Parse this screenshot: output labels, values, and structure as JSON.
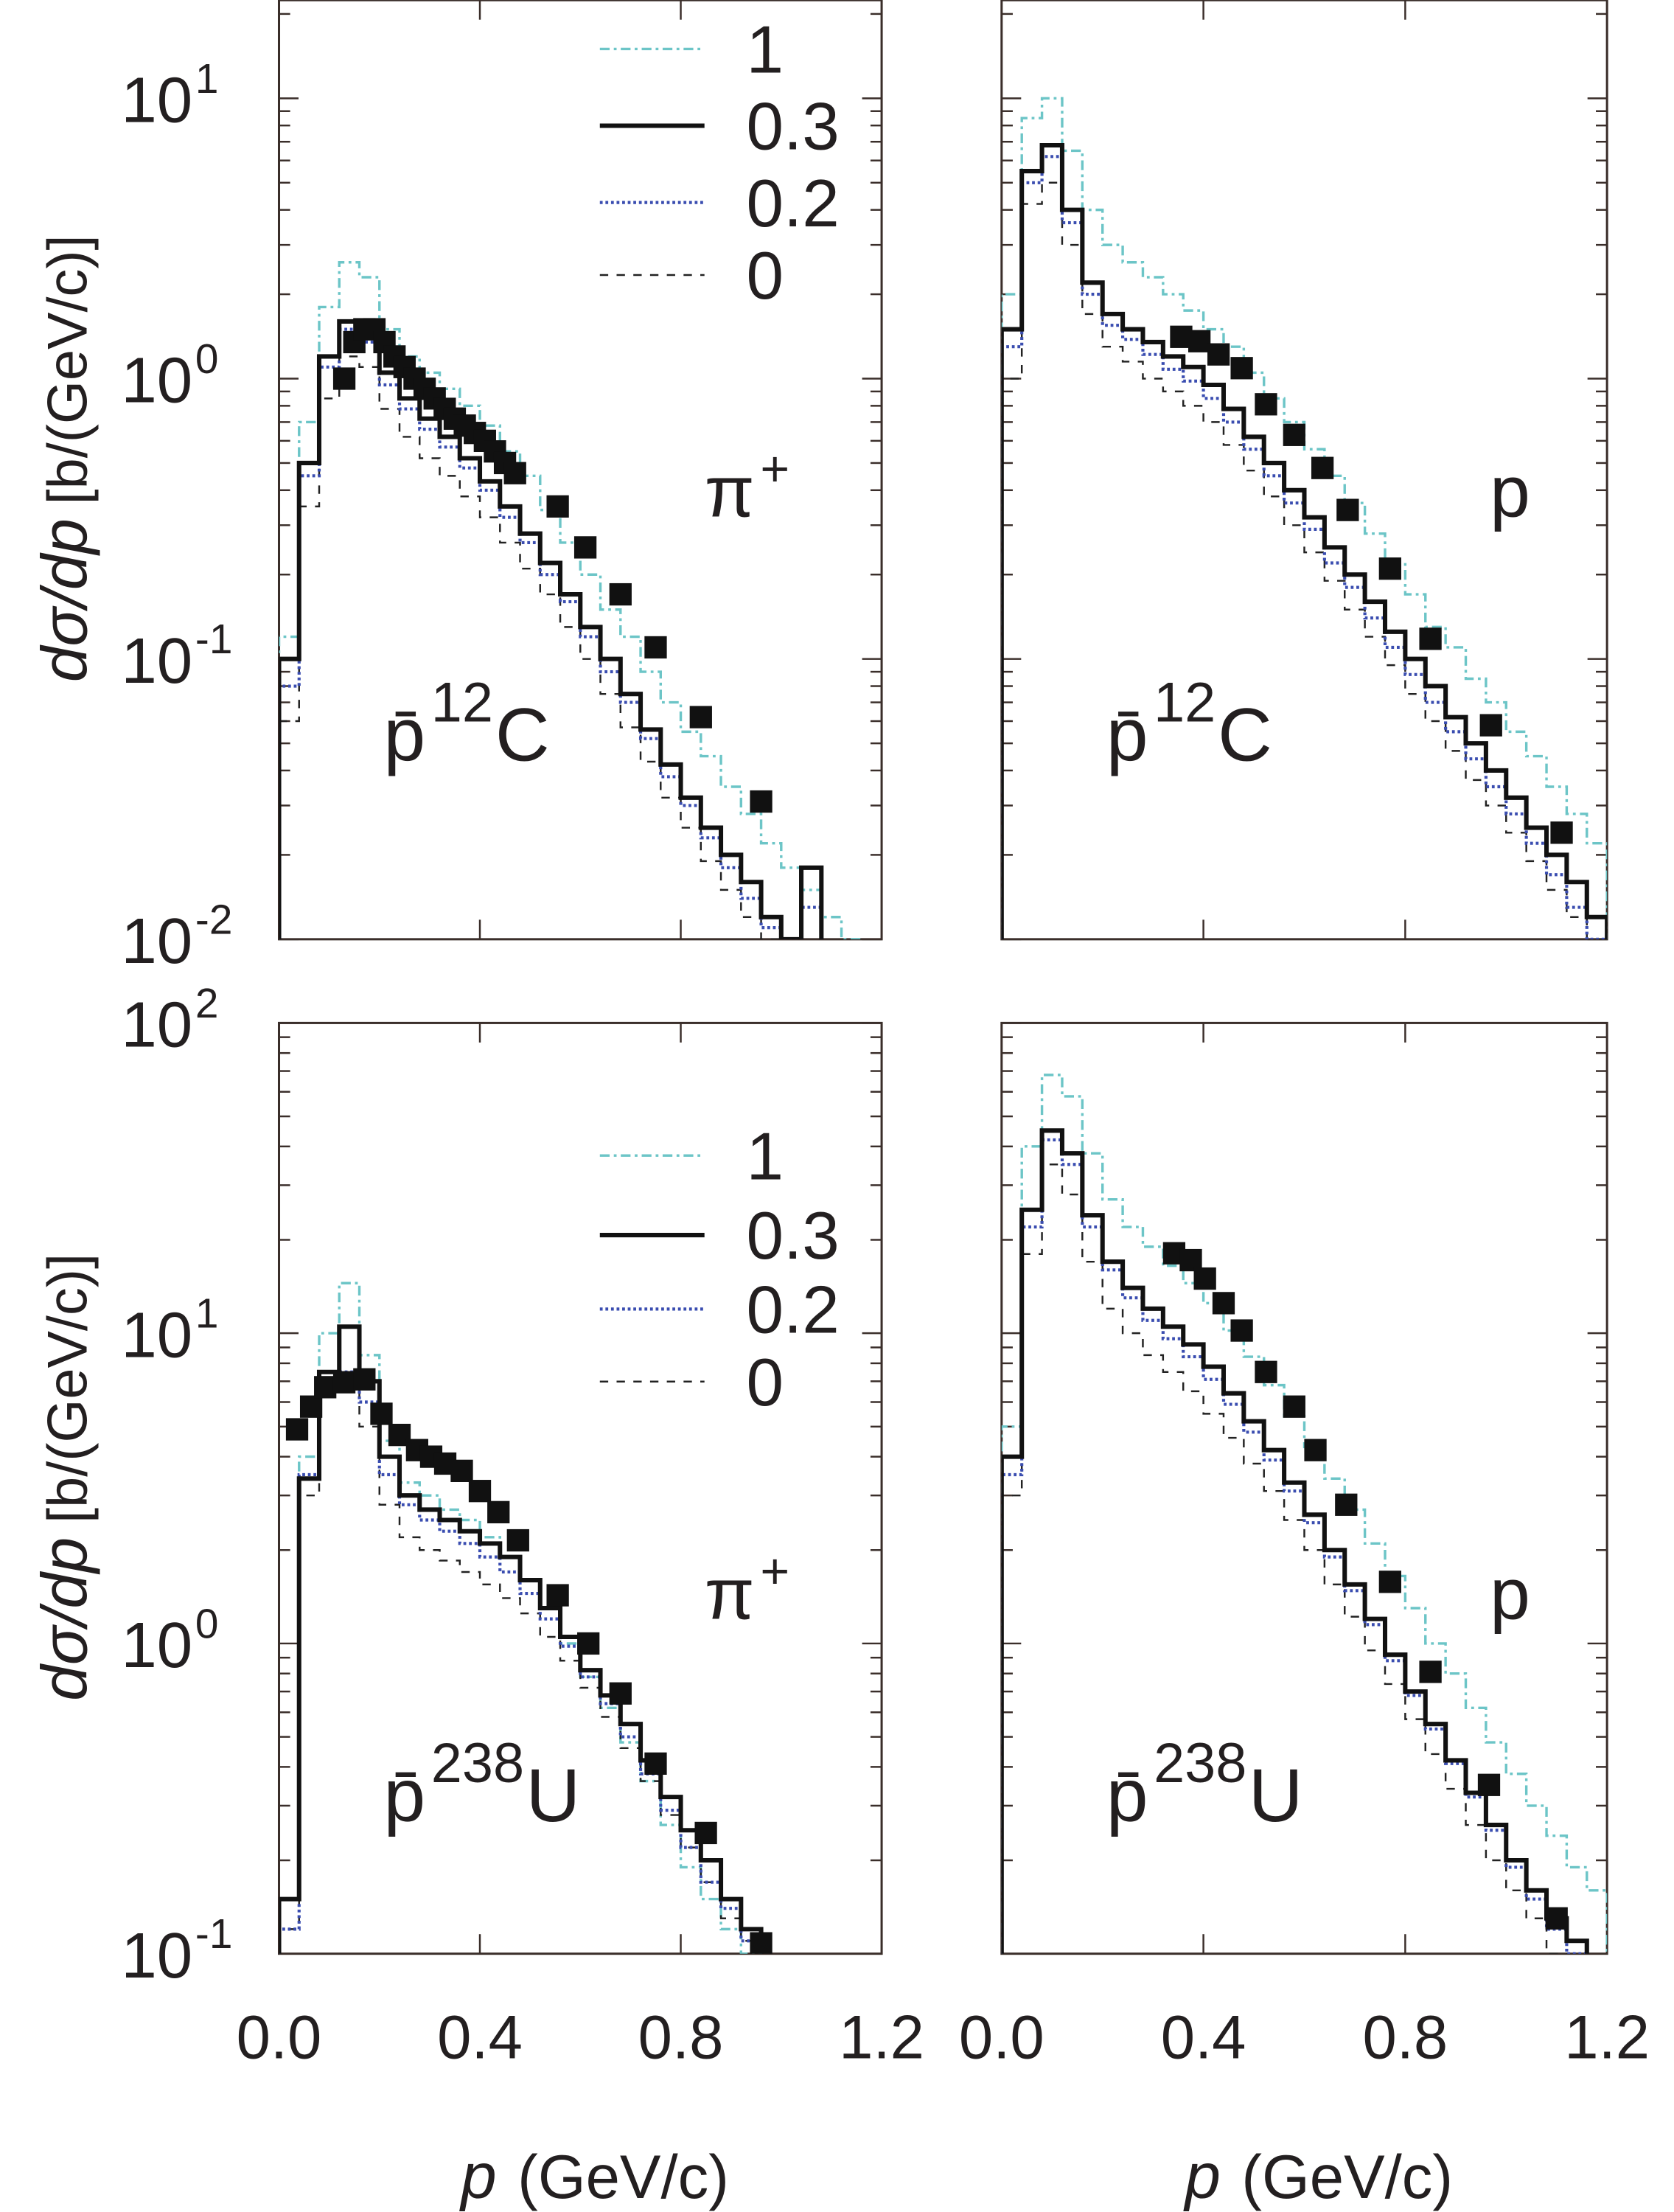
{
  "colors": {
    "m1": "#6cc5c7",
    "m03": "#111111",
    "m02": "#3a4db0",
    "m0": "#222222",
    "data": "#111111",
    "frame": "#3a2e2a"
  },
  "axes": {
    "ylabel_main": "dσ/dp",
    "ylabel_unit": "[b/(GeV/c)]",
    "xlabel_var": "p",
    "xlabel_unit": "(GeV/c)",
    "xticks": [
      "0.0",
      "0.4",
      "0.8",
      "1.2"
    ],
    "xtick_values": [
      0.0,
      0.4,
      0.8,
      1.2
    ]
  },
  "legend": [
    {
      "label": "1",
      "series": "m1"
    },
    {
      "label": "0.3",
      "series": "m03"
    },
    {
      "label": "0.2",
      "series": "m02"
    },
    {
      "label": "0",
      "series": "m0"
    }
  ],
  "chart_data": [
    {
      "type": "line",
      "panel": "top-left",
      "particle": "π",
      "particle_charge": "+",
      "target": {
        "projectile": "p̄",
        "mass": "12",
        "element": "C"
      },
      "xlim": [
        0,
        1.2
      ],
      "ylim": [
        0.01,
        22.4
      ],
      "yscale": "log",
      "yticks": [
        {
          "base": "10",
          "exp": "1",
          "value": 10
        },
        {
          "base": "10",
          "exp": "0",
          "value": 1
        },
        {
          "base": "10",
          "exp": "-1",
          "value": 0.1
        },
        {
          "base": "10",
          "exp": "-2",
          "value": 0.01
        }
      ],
      "bin_width": 0.04,
      "series": [
        {
          "name": "1",
          "key": "m1",
          "values": [
            0.12,
            0.7,
            1.8,
            2.6,
            2.3,
            1.5,
            1.2,
            1.05,
            0.92,
            0.8,
            0.68,
            0.55,
            0.45,
            0.34,
            0.26,
            0.2,
            0.15,
            0.12,
            0.09,
            0.07,
            0.055,
            0.045,
            0.035,
            0.028,
            0.022,
            0.018,
            0.015,
            0.012,
            0.01
          ]
        },
        {
          "name": "0.3",
          "key": "m03",
          "values": [
            0.1,
            0.5,
            1.2,
            1.6,
            1.45,
            1.05,
            0.85,
            0.72,
            0.62,
            0.52,
            0.43,
            0.35,
            0.28,
            0.22,
            0.17,
            0.13,
            0.1,
            0.075,
            0.056,
            0.042,
            0.032,
            0.025,
            0.02,
            0.016,
            0.012,
            0.01,
            0.018
          ]
        },
        {
          "name": "0.2",
          "key": "m02",
          "values": [
            0.08,
            0.45,
            1.1,
            1.5,
            1.35,
            0.95,
            0.78,
            0.66,
            0.57,
            0.48,
            0.4,
            0.32,
            0.26,
            0.2,
            0.16,
            0.12,
            0.09,
            0.07,
            0.052,
            0.038,
            0.03,
            0.023,
            0.018,
            0.014,
            0.011,
            0.01,
            0.013
          ]
        },
        {
          "name": "0",
          "key": "m0",
          "values": [
            0.06,
            0.35,
            0.85,
            1.2,
            1.1,
            0.78,
            0.62,
            0.52,
            0.45,
            0.38,
            0.32,
            0.26,
            0.21,
            0.17,
            0.13,
            0.1,
            0.075,
            0.057,
            0.043,
            0.032,
            0.025,
            0.019,
            0.015,
            0.012,
            0.01
          ]
        }
      ],
      "data_points": {
        "x": [
          0.13,
          0.15,
          0.17,
          0.19,
          0.21,
          0.23,
          0.25,
          0.27,
          0.29,
          0.31,
          0.33,
          0.35,
          0.37,
          0.39,
          0.41,
          0.43,
          0.45,
          0.47,
          0.555,
          0.61,
          0.68,
          0.75,
          0.84,
          0.96
        ],
        "y": [
          1.0,
          1.35,
          1.5,
          1.5,
          1.35,
          1.2,
          1.1,
          1.0,
          0.92,
          0.85,
          0.78,
          0.72,
          0.68,
          0.64,
          0.6,
          0.55,
          0.5,
          0.46,
          0.35,
          0.25,
          0.17,
          0.11,
          0.062,
          0.031
        ]
      }
    },
    {
      "type": "line",
      "panel": "top-right",
      "particle": "p",
      "particle_charge": "",
      "target": {
        "projectile": "p̄",
        "mass": "12",
        "element": "C"
      },
      "xlim": [
        0,
        1.2
      ],
      "ylim": [
        0.01,
        22.4
      ],
      "yscale": "log",
      "yticks": [],
      "bin_width": 0.04,
      "series": [
        {
          "name": "1",
          "key": "m1",
          "values": [
            2.0,
            8.5,
            10.0,
            6.5,
            4.0,
            3.0,
            2.6,
            2.3,
            2.0,
            1.75,
            1.5,
            1.3,
            1.05,
            0.85,
            0.7,
            0.56,
            0.45,
            0.36,
            0.28,
            0.22,
            0.17,
            0.13,
            0.11,
            0.085,
            0.07,
            0.055,
            0.045,
            0.035,
            0.028,
            0.022
          ]
        },
        {
          "name": "0.3",
          "key": "m03",
          "values": [
            1.5,
            5.5,
            6.8,
            4.0,
            2.2,
            1.7,
            1.5,
            1.35,
            1.2,
            1.1,
            0.95,
            0.78,
            0.62,
            0.5,
            0.4,
            0.32,
            0.25,
            0.2,
            0.16,
            0.125,
            0.1,
            0.08,
            0.062,
            0.05,
            0.04,
            0.032,
            0.025,
            0.02,
            0.016,
            0.012
          ]
        },
        {
          "name": "0.2",
          "key": "m02",
          "values": [
            1.3,
            5.0,
            6.2,
            3.6,
            2.0,
            1.55,
            1.38,
            1.22,
            1.08,
            0.98,
            0.85,
            0.7,
            0.56,
            0.45,
            0.36,
            0.29,
            0.22,
            0.18,
            0.14,
            0.11,
            0.088,
            0.07,
            0.055,
            0.044,
            0.035,
            0.028,
            0.022,
            0.017,
            0.013,
            0.01
          ]
        },
        {
          "name": "0",
          "key": "m0",
          "values": [
            1.0,
            4.2,
            5.0,
            3.0,
            1.7,
            1.3,
            1.15,
            1.0,
            0.9,
            0.8,
            0.7,
            0.58,
            0.47,
            0.38,
            0.3,
            0.24,
            0.19,
            0.15,
            0.12,
            0.095,
            0.075,
            0.06,
            0.047,
            0.037,
            0.03,
            0.024,
            0.019,
            0.015,
            0.012,
            0.01
          ]
        }
      ],
      "data_points": {
        "x": [
          0.356,
          0.392,
          0.43,
          0.476,
          0.524,
          0.58,
          0.636,
          0.686,
          0.77,
          0.85,
          0.97,
          1.11
        ],
        "y": [
          1.41,
          1.36,
          1.22,
          1.09,
          0.81,
          0.63,
          0.48,
          0.34,
          0.21,
          0.118,
          0.058,
          0.024
        ]
      }
    },
    {
      "type": "line",
      "panel": "bottom-left",
      "particle": "π",
      "particle_charge": "+",
      "target": {
        "projectile": "p̄",
        "mass": "238",
        "element": "U"
      },
      "xlim": [
        0,
        1.2
      ],
      "ylim": [
        0.1,
        100
      ],
      "yscale": "log",
      "yticks": [
        {
          "base": "10",
          "exp": "2",
          "value": 100
        },
        {
          "base": "10",
          "exp": "1",
          "value": 10
        },
        {
          "base": "10",
          "exp": "0",
          "value": 1
        },
        {
          "base": "10",
          "exp": "-1",
          "value": 0.1
        }
      ],
      "bin_width": 0.04,
      "series": [
        {
          "name": "1",
          "key": "m1",
          "values": [
            0.15,
            4.0,
            10,
            14.5,
            8.5,
            4.5,
            3.3,
            3.0,
            2.7,
            2.5,
            2.2,
            1.9,
            1.6,
            1.3,
            1.0,
            0.78,
            0.62,
            0.48,
            0.36,
            0.26,
            0.19,
            0.15,
            0.12,
            0.1
          ]
        },
        {
          "name": "0.3",
          "key": "m03",
          "values": [
            0.15,
            3.4,
            7.5,
            10.5,
            7.0,
            4.0,
            3.0,
            2.7,
            2.5,
            2.3,
            2.1,
            1.9,
            1.6,
            1.3,
            1.05,
            0.82,
            0.68,
            0.55,
            0.42,
            0.32,
            0.25,
            0.2,
            0.15,
            0.12
          ]
        },
        {
          "name": "0.2",
          "key": "m02",
          "values": [
            0.12,
            3.5,
            7.0,
            7.5,
            6.0,
            3.5,
            2.8,
            2.5,
            2.3,
            2.1,
            1.9,
            1.7,
            1.45,
            1.2,
            0.98,
            0.78,
            0.64,
            0.5,
            0.38,
            0.29,
            0.22,
            0.17,
            0.14,
            0.11
          ]
        },
        {
          "name": "0",
          "key": "m0",
          "values": [
            0.12,
            3.0,
            6.5,
            6.8,
            5.0,
            2.8,
            2.2,
            2.0,
            1.85,
            1.7,
            1.55,
            1.4,
            1.25,
            1.05,
            0.88,
            0.72,
            0.58,
            0.46,
            0.36,
            0.28,
            0.22,
            0.17,
            0.13,
            0.11
          ]
        }
      ],
      "data_points": {
        "x": [
          0.036,
          0.064,
          0.092,
          0.13,
          0.17,
          0.204,
          0.24,
          0.275,
          0.303,
          0.331,
          0.364,
          0.4,
          0.437,
          0.476,
          0.555,
          0.616,
          0.68,
          0.75,
          0.85,
          0.96
        ],
        "y": [
          4.9,
          5.8,
          6.7,
          6.95,
          7.1,
          5.5,
          4.7,
          4.2,
          4.0,
          3.8,
          3.6,
          3.1,
          2.65,
          2.15,
          1.43,
          1.0,
          0.69,
          0.41,
          0.245,
          0.108
        ]
      }
    },
    {
      "type": "line",
      "panel": "bottom-right",
      "particle": "p",
      "particle_charge": "",
      "target": {
        "projectile": "p̄",
        "mass": "238",
        "element": "U"
      },
      "xlim": [
        0,
        1.2
      ],
      "ylim": [
        0.1,
        100
      ],
      "yscale": "log",
      "yticks": [],
      "bin_width": 0.04,
      "series": [
        {
          "name": "1",
          "key": "m1",
          "values": [
            5,
            40,
            68,
            58,
            38,
            27,
            22,
            19,
            16.5,
            14.5,
            12.5,
            10.2,
            8.4,
            6.8,
            5.4,
            4.3,
            3.4,
            2.7,
            2.1,
            1.65,
            1.3,
            1.0,
            0.8,
            0.62,
            0.48,
            0.38,
            0.3,
            0.24,
            0.19,
            0.16
          ]
        },
        {
          "name": "0.3",
          "key": "m03",
          "values": [
            4,
            25,
            45,
            38,
            24,
            17,
            14,
            12,
            10.5,
            9.2,
            7.8,
            6.4,
            5.2,
            4.2,
            3.3,
            2.6,
            2.0,
            1.55,
            1.2,
            0.92,
            0.7,
            0.55,
            0.42,
            0.33,
            0.26,
            0.2,
            0.16,
            0.13,
            0.11
          ]
        },
        {
          "name": "0.2",
          "key": "m02",
          "values": [
            3.5,
            22,
            42,
            35,
            22,
            16,
            13,
            11,
            9.6,
            8.4,
            7.1,
            5.9,
            4.8,
            3.9,
            3.1,
            2.45,
            1.9,
            1.48,
            1.15,
            0.88,
            0.68,
            0.53,
            0.41,
            0.32,
            0.25,
            0.19,
            0.15,
            0.12,
            0.1
          ]
        },
        {
          "name": "0",
          "key": "m0",
          "values": [
            3,
            18,
            35,
            28,
            17,
            12,
            10,
            8.5,
            7.5,
            6.5,
            5.5,
            4.6,
            3.8,
            3.1,
            2.5,
            2.0,
            1.55,
            1.22,
            0.95,
            0.74,
            0.57,
            0.44,
            0.34,
            0.26,
            0.2,
            0.16,
            0.13,
            0.1
          ]
        }
      ],
      "data_points": {
        "x": [
          0.342,
          0.375,
          0.403,
          0.44,
          0.476,
          0.524,
          0.58,
          0.622,
          0.683,
          0.77,
          0.85,
          0.966,
          1.1
        ],
        "y": [
          18.1,
          17.2,
          15.0,
          12.5,
          10.2,
          7.5,
          5.8,
          4.2,
          2.8,
          1.58,
          0.81,
          0.35,
          0.13
        ]
      }
    }
  ]
}
